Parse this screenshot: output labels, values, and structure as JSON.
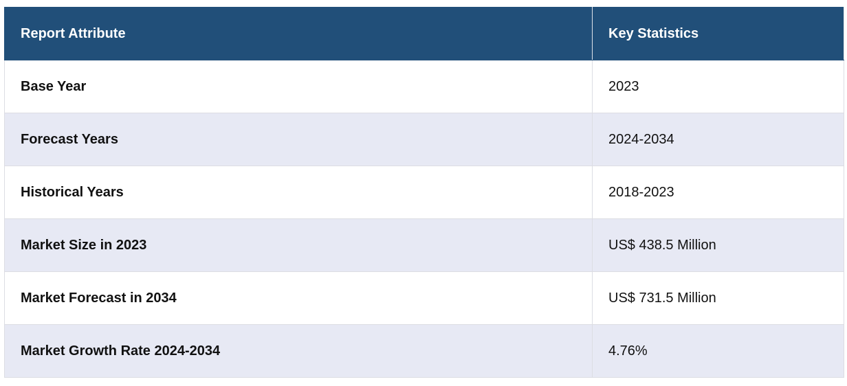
{
  "table": {
    "header": [
      "Report Attribute",
      "Key Statistics"
    ],
    "rows": [
      [
        "Base Year",
        "2023"
      ],
      [
        "Forecast Years",
        "2024-2034"
      ],
      [
        "Historical Years",
        "2018-2023"
      ],
      [
        "Market Size in 2023",
        "US$ 438.5 Million"
      ],
      [
        "Market Forecast in 2034",
        "US$ 731.5 Million"
      ],
      [
        "Market Growth Rate 2024-2034",
        "4.76%"
      ]
    ]
  }
}
